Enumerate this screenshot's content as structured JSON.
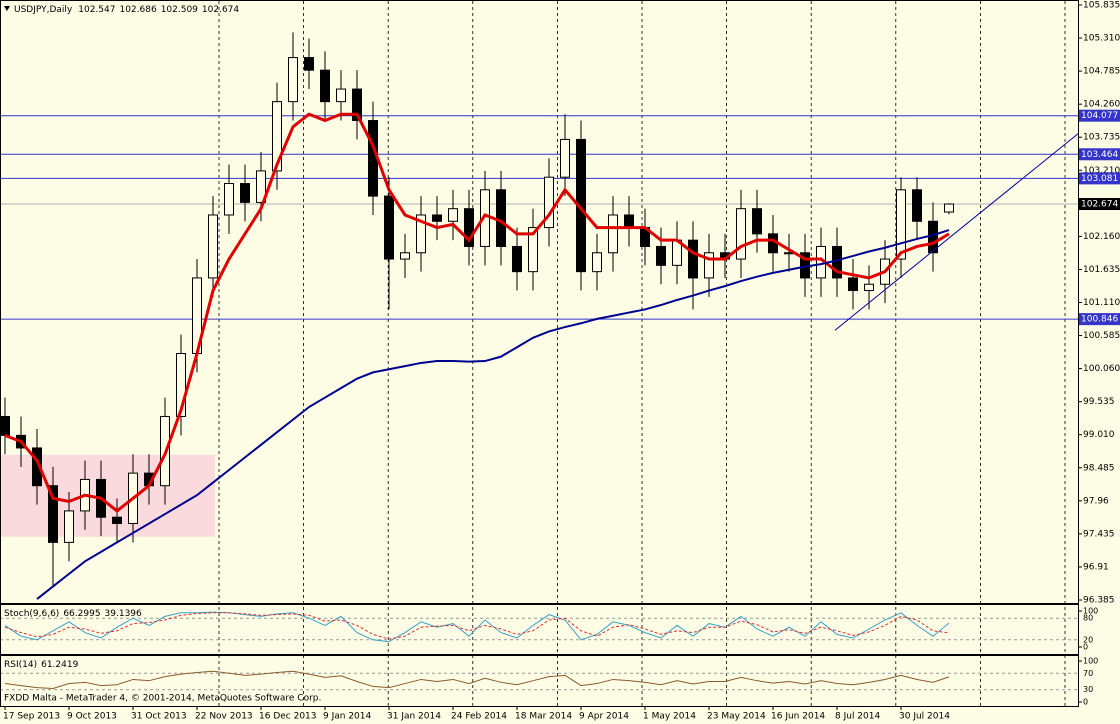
{
  "chart_data": [
    {
      "type": "candlestick",
      "title": "USDJPY,Daily",
      "x": [
        0,
        4,
        8,
        12,
        16,
        20,
        24,
        28,
        32,
        36,
        40,
        44,
        48,
        52,
        56,
        60,
        64,
        68,
        72,
        76,
        80,
        84,
        88,
        92,
        96,
        100,
        104,
        108,
        112,
        116,
        120,
        124,
        128,
        132,
        136,
        140,
        144,
        148,
        152,
        156,
        160,
        164,
        168,
        172,
        176,
        180,
        184,
        188,
        192,
        196,
        200,
        204,
        208,
        212,
        216,
        220,
        224,
        228,
        232,
        236
      ],
      "open": [
        99.3,
        99.0,
        98.8,
        98.2,
        97.3,
        97.8,
        98.3,
        97.7,
        97.6,
        98.4,
        98.2,
        99.3,
        100.3,
        101.5,
        102.5,
        103.0,
        102.7,
        103.2,
        104.3,
        105.0,
        104.8,
        104.3,
        104.5,
        104.0,
        102.8,
        101.8,
        101.9,
        102.5,
        102.4,
        102.6,
        102.0,
        102.9,
        102.0,
        101.6,
        102.3,
        103.1,
        103.7,
        101.6,
        101.9,
        102.5,
        102.3,
        102.0,
        101.7,
        102.1,
        101.5,
        101.9,
        101.8,
        102.6,
        102.2,
        101.9,
        101.9,
        101.5,
        102.0,
        101.5,
        101.3,
        101.4,
        101.8,
        102.9,
        102.4,
        102.547
      ],
      "high": [
        99.6,
        99.3,
        99.1,
        98.5,
        98.1,
        98.6,
        98.6,
        98.0,
        98.7,
        98.7,
        99.6,
        100.6,
        101.8,
        102.8,
        103.3,
        103.3,
        103.5,
        104.6,
        105.4,
        105.3,
        105.1,
        104.8,
        104.8,
        104.3,
        103.1,
        102.2,
        102.8,
        102.8,
        102.9,
        102.9,
        103.2,
        103.2,
        102.3,
        102.6,
        103.4,
        104.1,
        104.0,
        102.2,
        102.8,
        102.8,
        102.6,
        102.3,
        102.4,
        102.4,
        102.2,
        102.2,
        102.9,
        102.9,
        102.5,
        102.2,
        102.2,
        102.3,
        102.3,
        101.8,
        101.7,
        102.1,
        103.1,
        103.1,
        102.7,
        102.686
      ],
      "low": [
        98.7,
        98.5,
        97.9,
        96.6,
        97.0,
        97.5,
        97.4,
        97.3,
        97.3,
        97.9,
        97.9,
        99.0,
        100.0,
        101.2,
        102.2,
        102.4,
        102.4,
        102.9,
        104.0,
        104.5,
        104.0,
        104.0,
        103.7,
        102.5,
        101.0,
        101.5,
        101.6,
        102.1,
        102.1,
        101.7,
        101.7,
        101.7,
        101.3,
        101.3,
        102.0,
        102.8,
        101.3,
        101.3,
        101.6,
        102.0,
        101.7,
        101.4,
        101.4,
        101.0,
        101.2,
        101.5,
        101.5,
        101.9,
        101.6,
        101.6,
        101.2,
        101.2,
        101.2,
        101.0,
        101.0,
        101.1,
        101.5,
        102.1,
        101.6,
        102.509
      ],
      "close": [
        99.0,
        98.8,
        98.2,
        97.3,
        97.8,
        98.3,
        97.7,
        97.6,
        98.4,
        98.2,
        99.3,
        100.3,
        101.5,
        102.5,
        103.0,
        102.7,
        103.2,
        104.3,
        105.0,
        104.8,
        104.3,
        104.5,
        104.0,
        102.8,
        101.8,
        101.9,
        102.5,
        102.4,
        102.6,
        102.0,
        102.9,
        102.0,
        101.6,
        102.3,
        103.1,
        103.7,
        101.6,
        101.9,
        102.5,
        102.3,
        102.0,
        101.7,
        102.1,
        101.5,
        101.9,
        101.8,
        102.6,
        102.2,
        101.9,
        101.9,
        101.5,
        102.0,
        101.5,
        101.3,
        101.4,
        101.8,
        102.9,
        102.4,
        101.9,
        102.674
      ],
      "overlays": [
        {
          "color": "#e00000",
          "values": [
            99.0,
            98.9,
            98.6,
            98.0,
            97.95,
            98.05,
            98.0,
            97.8,
            98.0,
            98.2,
            98.7,
            99.4,
            100.3,
            101.3,
            101.8,
            102.2,
            102.6,
            103.3,
            103.9,
            104.1,
            104.0,
            104.1,
            104.1,
            103.6,
            102.9,
            102.5,
            102.4,
            102.3,
            102.35,
            102.1,
            102.5,
            102.4,
            102.2,
            102.2,
            102.5,
            102.9,
            102.6,
            102.3,
            102.3,
            102.3,
            102.3,
            102.1,
            102.1,
            101.9,
            101.8,
            101.8,
            102.0,
            102.1,
            102.1,
            101.95,
            101.8,
            101.8,
            101.6,
            101.55,
            101.5,
            101.6,
            101.9,
            102.0,
            102.05,
            102.2
          ]
        },
        {
          "color": "#000090",
          "values": [
            null,
            null,
            96.4,
            96.6,
            96.8,
            97.0,
            97.15,
            97.3,
            97.45,
            97.6,
            97.75,
            97.9,
            98.05,
            98.25,
            98.45,
            98.65,
            98.85,
            99.05,
            99.25,
            99.45,
            99.6,
            99.75,
            99.9,
            100.0,
            100.05,
            100.1,
            100.15,
            100.18,
            100.18,
            100.17,
            100.18,
            100.25,
            100.4,
            100.55,
            100.65,
            100.72,
            100.78,
            100.85,
            100.9,
            100.95,
            101.0,
            101.07,
            101.15,
            101.22,
            101.3,
            101.37,
            101.45,
            101.52,
            101.58,
            101.63,
            101.68,
            101.72,
            101.78,
            101.85,
            101.92,
            101.98,
            102.05,
            102.12,
            102.18,
            102.26
          ]
        }
      ],
      "levels": [
        104.077,
        103.464,
        103.081,
        100.846
      ],
      "level_color": "#3434c8",
      "zone": {
        "x": [
          -1,
          52.5
        ],
        "y": [
          97.39,
          98.69
        ],
        "color": "#fadadc"
      },
      "trendline": {
        "x": [
          207.5,
          268.25
        ],
        "y": [
          100.67,
          103.79
        ]
      },
      "xlim": [
        -1.25,
        268.25
      ],
      "ylim": [
        96.385,
        105.835
      ],
      "yticks": [
        105.835,
        {
          "value": 105.31,
          "label": "105.310"
        },
        104.785,
        {
          "value": 104.26,
          "label": "104.260"
        },
        103.735,
        {
          "value": 103.21,
          "label": "103.210"
        },
        {
          "value": 102.16,
          "label": "102.160"
        },
        101.635,
        {
          "value": 101.11,
          "label": "101.110"
        },
        100.585,
        {
          "value": 100.06,
          "label": "100.060"
        },
        99.535,
        {
          "value": 99.01,
          "label": "99.010"
        },
        98.485,
        97.96,
        97.435,
        96.91,
        96.385
      ],
      "xticks": [
        {
          "value": 0,
          "label": "17 Sep 2013"
        },
        {
          "value": 16,
          "label": "9 Oct 2013"
        },
        {
          "value": 32,
          "label": "31 Oct 2013"
        },
        {
          "value": 48,
          "label": "22 Nov 2013"
        },
        {
          "value": 64,
          "label": "16 Dec 2013"
        },
        {
          "value": 80,
          "label": "9 Jan 2014"
        },
        {
          "value": 96,
          "label": "31 Jan 2014"
        },
        {
          "value": 112,
          "label": "24 Feb 2014"
        },
        {
          "value": 128,
          "label": "18 Mar 2014"
        },
        {
          "value": 144,
          "label": "9 Apr 2014"
        },
        {
          "value": 160,
          "label": "1 May 2014"
        },
        {
          "value": 176,
          "label": "23 May 2014"
        },
        {
          "value": 192,
          "label": "16 Jun 2014"
        },
        {
          "value": 208,
          "label": "8 Jul 2014"
        },
        {
          "value": 224,
          "label": "30 Jul 2014"
        }
      ]
    },
    {
      "type": "line",
      "title": "Stoch(9,6,6)",
      "series": [
        {
          "color": "#3aa0c8",
          "values": [
            60,
            30,
            20,
            45,
            70,
            40,
            25,
            55,
            80,
            60,
            85,
            95,
            95,
            97,
            95,
            90,
            85,
            92,
            95,
            80,
            60,
            85,
            40,
            20,
            15,
            40,
            70,
            55,
            65,
            30,
            75,
            40,
            25,
            60,
            90,
            75,
            20,
            35,
            70,
            60,
            40,
            25,
            60,
            30,
            65,
            55,
            85,
            50,
            30,
            55,
            30,
            70,
            35,
            25,
            50,
            75,
            95,
            60,
            30,
            66.2995
          ]
        },
        {
          "color": "#e03030",
          "dash": true,
          "values": [
            55,
            40,
            28,
            35,
            55,
            50,
            38,
            45,
            65,
            68,
            75,
            88,
            93,
            95,
            95,
            92,
            88,
            90,
            92,
            88,
            72,
            75,
            60,
            35,
            22,
            30,
            55,
            58,
            60,
            45,
            60,
            50,
            35,
            45,
            75,
            80,
            45,
            30,
            55,
            62,
            50,
            35,
            45,
            40,
            55,
            55,
            72,
            62,
            42,
            48,
            38,
            55,
            45,
            32,
            42,
            60,
            85,
            75,
            45,
            39.1396
          ]
        }
      ],
      "ylim": [
        0,
        100
      ],
      "yticks": [
        0,
        20,
        80,
        100
      ]
    },
    {
      "type": "line",
      "title": "RSI(14)",
      "series": [
        {
          "color": "#8b5a2b",
          "values": [
            45,
            40,
            35,
            33,
            45,
            48,
            40,
            42,
            55,
            52,
            62,
            68,
            72,
            75,
            70,
            65,
            68,
            72,
            75,
            68,
            60,
            64,
            50,
            38,
            35,
            45,
            55,
            50,
            55,
            45,
            58,
            48,
            42,
            52,
            62,
            65,
            40,
            45,
            55,
            52,
            48,
            42,
            52,
            44,
            50,
            50,
            60,
            52,
            46,
            50,
            44,
            52,
            45,
            42,
            48,
            55,
            65,
            55,
            48,
            61.2419
          ]
        }
      ],
      "ylim": [
        0,
        100
      ],
      "yticks": [
        0,
        30,
        70,
        100
      ]
    }
  ],
  "footer": "FXDD Malta - MetaTrader 4, © 2001-2014, MetaQuotes Software Corp."
}
